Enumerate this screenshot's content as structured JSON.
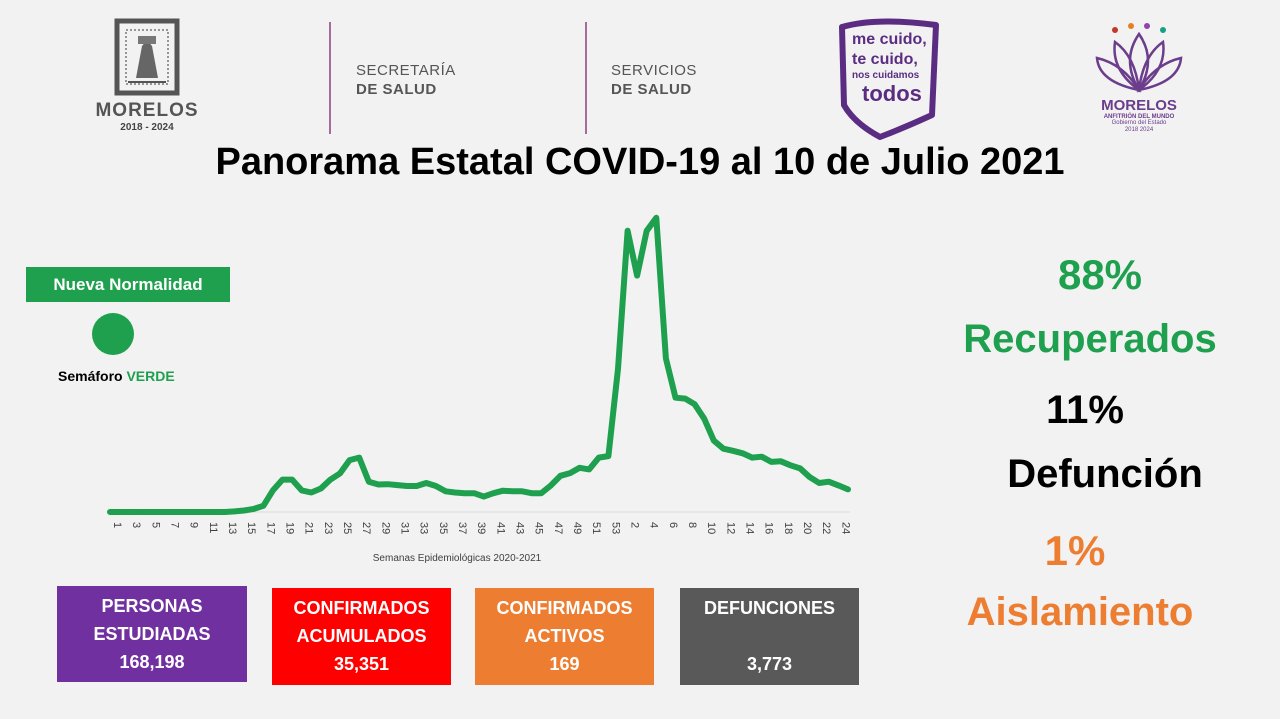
{
  "header": {
    "state_logo": {
      "name": "MORELOS",
      "years": "2018 - 2024"
    },
    "dependency1": {
      "line1": "SECRETARÍA",
      "line2": "DE SALUD"
    },
    "dependency2": {
      "line1": "SERVICIOS",
      "line2": "DE SALUD"
    },
    "campaign": {
      "line1": "me cuido,",
      "line2": "te cuido,",
      "line3": "nos cuidamos",
      "line4": "todos"
    },
    "gov_logo": {
      "name": "MORELOS",
      "tagline": "ANFITRIÓN DEL MUNDO",
      "line1": "Gobierno del Estado",
      "line2": "2018 2024"
    }
  },
  "title": "Panorama Estatal COVID-19 al 10 de Julio 2021",
  "status": {
    "badge": "Nueva Normalidad",
    "semaforo_prefix": "Semáforo",
    "semaforo_value": "VERDE",
    "color": "#1ea04e"
  },
  "stats": {
    "recuperados_pct": "88%",
    "recuperados_label": "Recuperados",
    "defuncion_pct": "11%",
    "defuncion_label": "Defunción",
    "aislamiento_pct": "1%",
    "aislamiento_label": "Aislamiento"
  },
  "cards": [
    {
      "line1": "PERSONAS",
      "line2": "ESTUDIADAS",
      "value": "168,198",
      "color": "#7030a0"
    },
    {
      "line1": "CONFIRMADOS",
      "line2": "ACUMULADOS",
      "value": "35,351",
      "color": "#ff0000"
    },
    {
      "line1": "CONFIRMADOS",
      "line2": "ACTIVOS",
      "value": "169",
      "color": "#ed7d31"
    },
    {
      "line1": "DEFUNCIONES",
      "line2": "",
      "value": "3,773",
      "color": "#595959"
    }
  ],
  "chart_data": {
    "type": "line",
    "title": "",
    "xlabel": "Semanas Epidemiológicas 2020-2021",
    "ylabel": "",
    "grid": false,
    "color": "#1ea04e",
    "ylim": [
      0,
      100
    ],
    "x": [
      "1",
      "2",
      "3",
      "4",
      "5",
      "6",
      "7",
      "8",
      "9",
      "10",
      "11",
      "12",
      "13",
      "14",
      "15",
      "16",
      "17",
      "18",
      "19",
      "20",
      "21",
      "22",
      "23",
      "24",
      "25",
      "26",
      "27",
      "28",
      "29",
      "30",
      "31",
      "32",
      "33",
      "34",
      "35",
      "36",
      "37",
      "38",
      "39",
      "40",
      "41",
      "42",
      "43",
      "44",
      "45",
      "46",
      "47",
      "48",
      "49",
      "50",
      "51",
      "52",
      "53",
      "1",
      "2",
      "3",
      "4",
      "5",
      "6",
      "7",
      "8",
      "9",
      "10",
      "11",
      "12",
      "13",
      "14",
      "15",
      "16",
      "17",
      "18",
      "19",
      "20",
      "21",
      "22",
      "23",
      "24",
      "25"
    ],
    "xticks": [
      "1",
      "3",
      "5",
      "7",
      "9",
      "11",
      "13",
      "15",
      "17",
      "19",
      "21",
      "23",
      "25",
      "27",
      "29",
      "31",
      "33",
      "35",
      "37",
      "39",
      "41",
      "43",
      "45",
      "47",
      "49",
      "51",
      "53",
      "2",
      "4",
      "6",
      "8",
      "10",
      "12",
      "14",
      "16",
      "18",
      "20",
      "22",
      "24"
    ],
    "series": [
      {
        "values": [
          0,
          0,
          0,
          0,
          0,
          0,
          0,
          0,
          0,
          0,
          0,
          0,
          0,
          0.2,
          0.5,
          1,
          2,
          7,
          10.5,
          10.5,
          7,
          6.3,
          7.6,
          10.5,
          12.5,
          16.8,
          17.6,
          9.8,
          8.9,
          9,
          8.7,
          8.4,
          8.4,
          9.4,
          8.4,
          6.7,
          6.3,
          6.1,
          6.1,
          5,
          6.1,
          6.9,
          6.7,
          6.7,
          6.1,
          6.1,
          8.6,
          11.7,
          12.6,
          14.3,
          13.8,
          17.6,
          18.1,
          46.3,
          91,
          76.5,
          91,
          95.2,
          49.7,
          37,
          36.7,
          34.9,
          30.2,
          23.1,
          20.5,
          19.8,
          19,
          17.6,
          17.9,
          16.2,
          16.4,
          15.1,
          14.1,
          11.3,
          9.4,
          9.8,
          8.6,
          7.3
        ]
      }
    ]
  }
}
